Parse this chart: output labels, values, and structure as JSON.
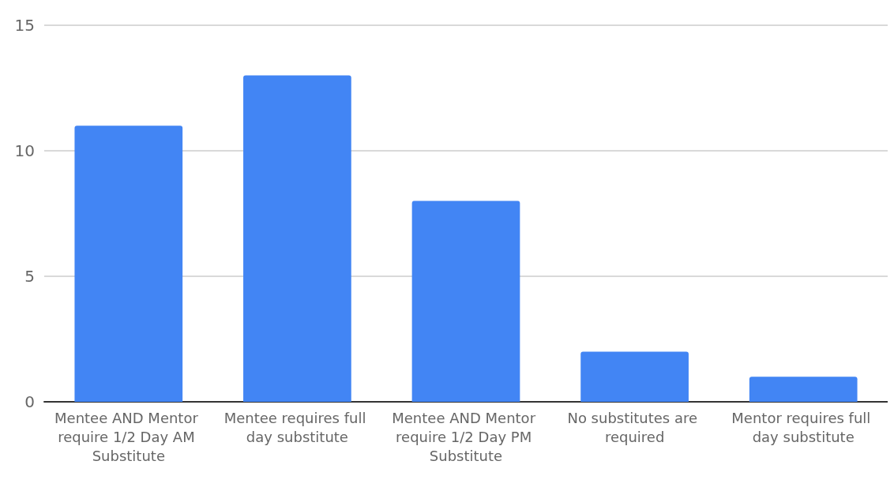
{
  "chart_data": {
    "type": "bar",
    "categories": [
      "Mentee AND Mentor require 1/2 Day AM Substitute",
      "Mentee requires full day substitute",
      "Mentee AND Mentor require 1/2 Day PM Substitute",
      "No substitutes are required",
      "Mentor requires full day substitute"
    ],
    "values": [
      11,
      13,
      8,
      2,
      1
    ],
    "color": "#4285f4",
    "ylim": [
      0,
      15
    ],
    "yticks": [
      0,
      5,
      10,
      15
    ],
    "grid": "y"
  }
}
